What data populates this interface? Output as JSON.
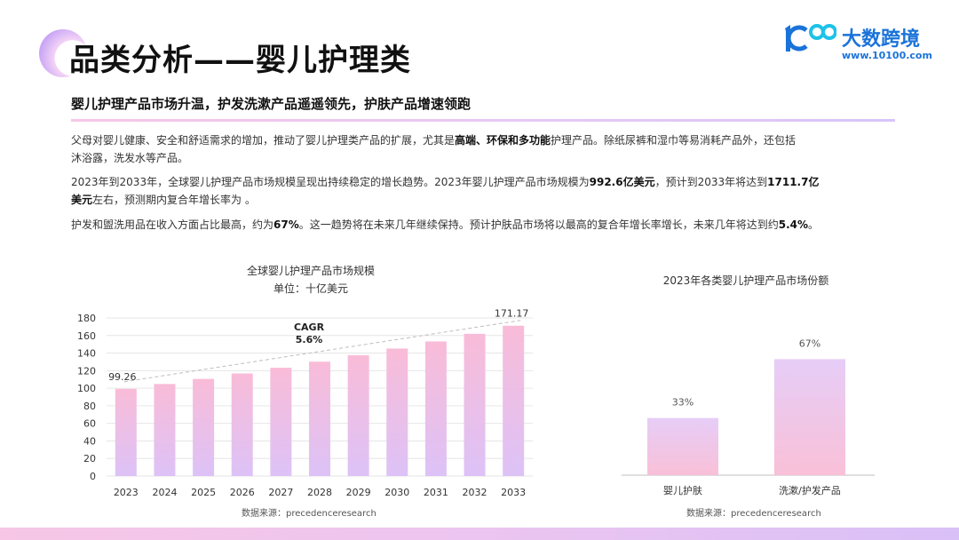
{
  "header": {
    "title": "品类分析——婴儿护理类",
    "logo_name": "大数跨境",
    "logo_url": "www.10100.com"
  },
  "subtitle": "婴儿护理产品市场升温，护发洗漱产品遥遥领先，护肤产品增速领跑",
  "paragraphs": {
    "p1_a": "父母对婴儿健康、安全和舒适需求的增加，推动了婴儿护理类产品的扩展，尤其是",
    "p1_b": "高端、环保和多功能",
    "p1_c": "护理产品。除纸尿裤和湿巾等易消耗产品外，还包括",
    "p1_d": "沐浴露，洗发水等产品。",
    "p2_a": "2023年到2033年，全球婴儿护理产品市场规模呈现出持续稳定的增长趋势。2023年婴儿护理产品市场规模为",
    "p2_b": "992.6亿美元",
    "p2_c": "，预计到2033年将达到",
    "p2_d": "1711.7亿",
    "p2_e": "美元",
    "p2_f": "左右，预测期内复合年增长率为 。",
    "p3_a": "护发和盥洗用品在收入方面占比最高，约为",
    "p3_b": "67%",
    "p3_c": "。这一趋势将在未来几年继续保持。预计护肤品市场将以最高的复合年增长率增长，未来几年将达到约",
    "p3_d": "5.4%",
    "p3_e": "。"
  },
  "chart_data": [
    {
      "type": "bar",
      "title": "全球婴儿护理产品市场规模",
      "subtitle": "单位：十亿美元",
      "categories": [
        "2023",
        "2024",
        "2025",
        "2026",
        "2027",
        "2028",
        "2029",
        "2030",
        "2031",
        "2032",
        "2033"
      ],
      "values": [
        99.26,
        104.8,
        110.6,
        116.8,
        123.3,
        130.2,
        137.5,
        145.2,
        153.3,
        161.9,
        171.17
      ],
      "data_labels": {
        "first": "99.26",
        "last": "171.17"
      },
      "yticks": [
        "0",
        "20",
        "40",
        "60",
        "80",
        "100",
        "120",
        "140",
        "160",
        "180"
      ],
      "ylim": [
        0,
        180
      ],
      "annotation": {
        "line1": "CAGR",
        "line2": "5.6%"
      },
      "source": "数据来源：precedenceresearch",
      "grid": true,
      "bar_colors": {
        "top": "#f9bcd8",
        "bottom": "#ddc2f7"
      }
    },
    {
      "type": "bar",
      "title": "2023年各类婴儿护理产品市场份额",
      "categories": [
        "婴儿护肤",
        "洗漱/护发产品"
      ],
      "values": [
        33,
        67
      ],
      "value_labels": [
        "33%",
        "67%"
      ],
      "ylim": [
        0,
        100
      ],
      "source": "数据来源：precedenceresearch",
      "grid": false
    }
  ]
}
